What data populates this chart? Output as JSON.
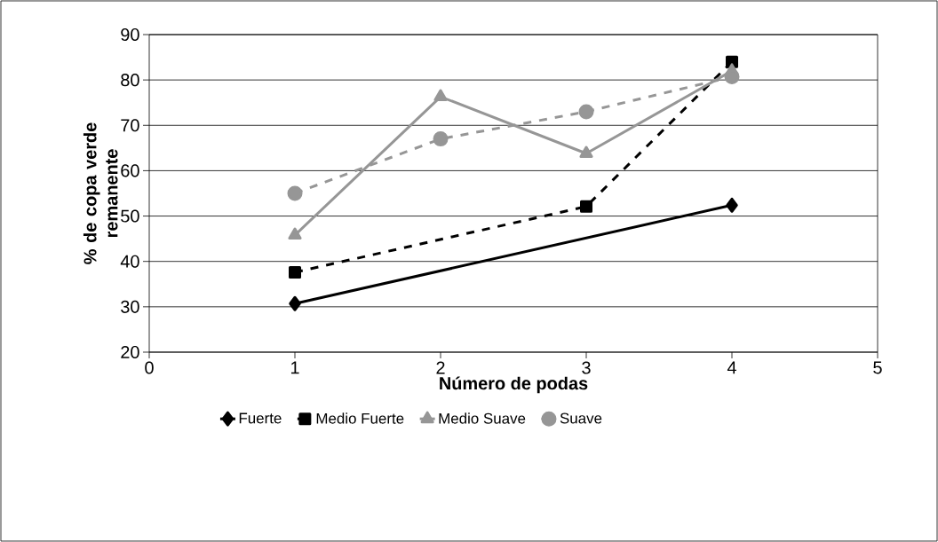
{
  "chart_data": {
    "type": "line",
    "xlabel": "Número de podas",
    "ylabel": "% de copa verde remanente",
    "x": [
      1,
      2,
      3,
      4
    ],
    "series": [
      {
        "name": "Fuerte",
        "color": "#000000",
        "marker": "diamond",
        "line_style": "solid",
        "x": [
          1,
          4
        ],
        "values": [
          30.7,
          52.4
        ]
      },
      {
        "name": "Medio Fuerte",
        "color": "#000000",
        "marker": "square",
        "line_style": "dashed",
        "x": [
          1,
          3,
          4
        ],
        "values": [
          37.6,
          52.1,
          84.0
        ]
      },
      {
        "name": "Medio Suave",
        "color": "#969696",
        "marker": "triangle",
        "line_style": "solid",
        "values": [
          45.8,
          76.3,
          63.8,
          82.0
        ]
      },
      {
        "name": "Suave",
        "color": "#969696",
        "marker": "circle",
        "line_style": "dashed",
        "values": [
          55.0,
          67.0,
          73.0,
          80.7
        ]
      }
    ],
    "xlim": [
      0,
      5
    ],
    "ylim": [
      20,
      90
    ],
    "xticks": [
      0,
      1,
      2,
      3,
      4,
      5
    ],
    "yticks": [
      20,
      30,
      40,
      50,
      60,
      70,
      80,
      90
    ],
    "grid": "y",
    "legend": "bottom"
  }
}
